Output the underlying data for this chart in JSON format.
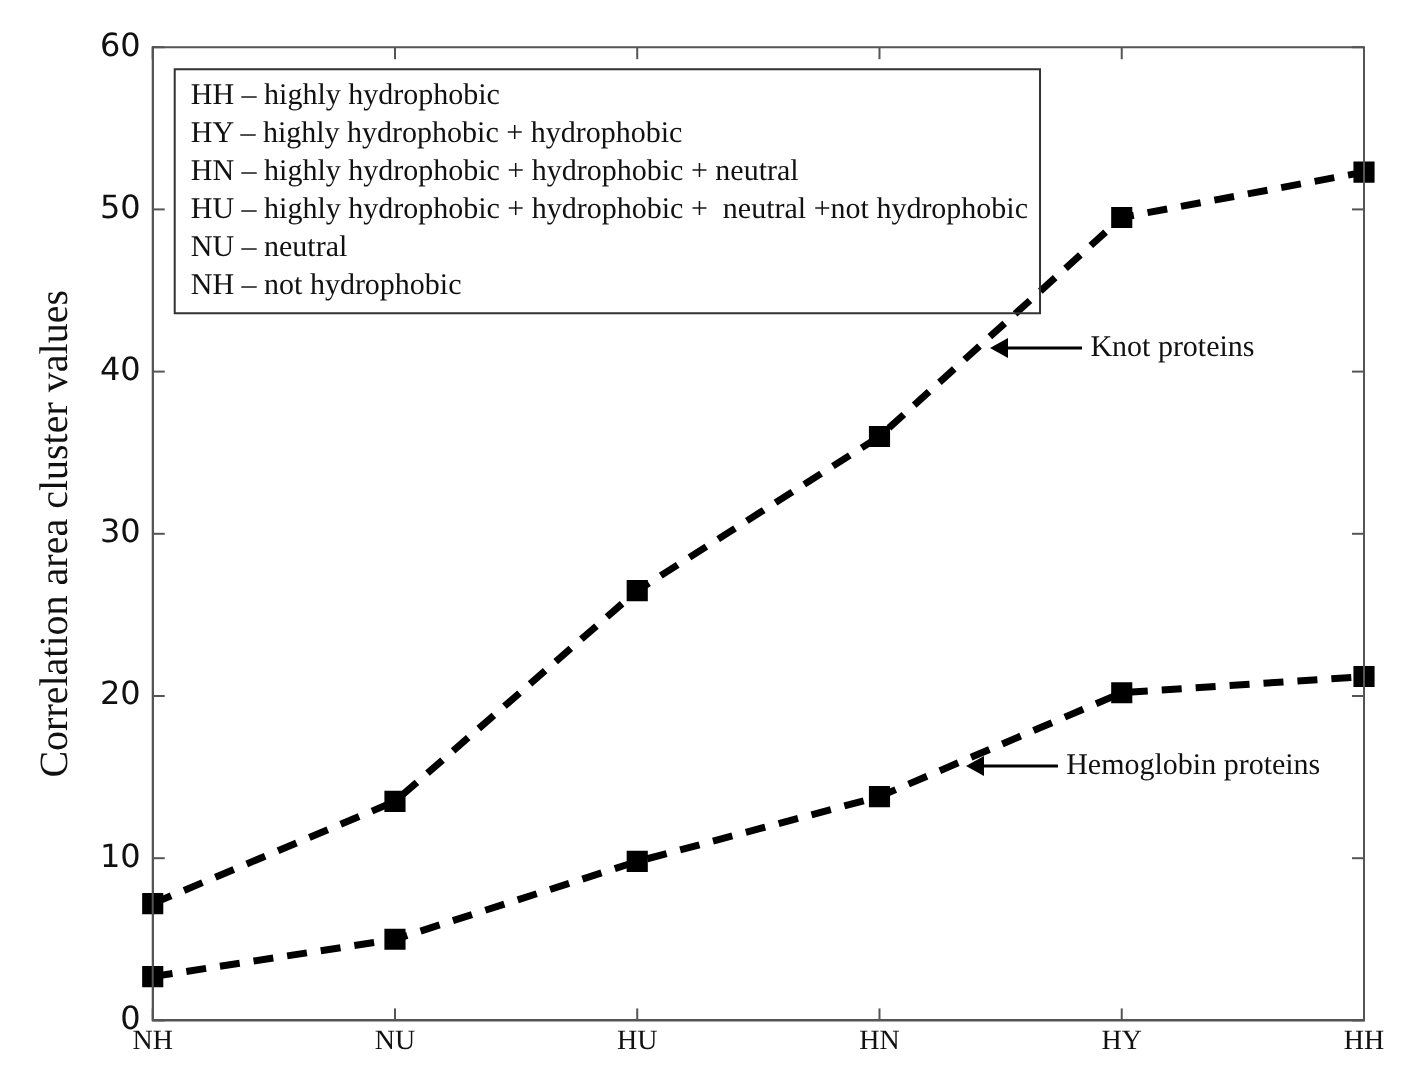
{
  "chart_data": {
    "type": "line",
    "ylabel": "Correlation area cluster values",
    "categories": [
      "NH",
      "NU",
      "HU",
      "HN",
      "HY",
      "HH"
    ],
    "series": [
      {
        "color": "#000000",
        "values": [
          7.2,
          13.5,
          26.5,
          36,
          49.5,
          52.3
        ]
      },
      {
        "color": "#000000",
        "values": [
          2.7,
          5,
          9.8,
          13.8,
          20.2,
          21.2
        ]
      }
    ],
    "ylim": [
      0,
      60
    ],
    "yticks": [
      0,
      10,
      20,
      30,
      40,
      50,
      60
    ],
    "grid": false,
    "legend": false,
    "marker": "square",
    "line_style": "dashed",
    "annotations": [
      "HH – highly hydrophobic",
      "HY – highly hydrophobic + hydrophobic",
      "HN – highly hydrophobic + hydrophobic + neutral",
      "HU – highly hydrophobic + hydrophobic +  neutral +not hydrophobic",
      "NU – neutral",
      "NH – not hydrophobic",
      "Knot proteins",
      "Hemoglobin proteins"
    ]
  }
}
